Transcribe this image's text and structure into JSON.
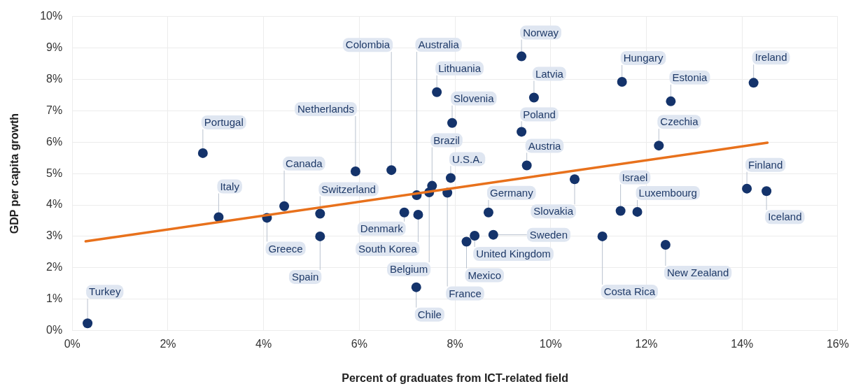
{
  "chart_data": {
    "type": "scatter",
    "xlabel": "Percent of graduates from ICT-related field",
    "ylabel": "GDP per capita growth",
    "xlim": [
      0,
      16
    ],
    "ylim": [
      0,
      10
    ],
    "xticks": [
      {
        "value": 0,
        "label": "0%"
      },
      {
        "value": 2,
        "label": "2%"
      },
      {
        "value": 4,
        "label": "4%"
      },
      {
        "value": 6,
        "label": "6%"
      },
      {
        "value": 8,
        "label": "8%"
      },
      {
        "value": 10,
        "label": "10%"
      },
      {
        "value": 12,
        "label": "12%"
      },
      {
        "value": 14,
        "label": "14%"
      },
      {
        "value": 16,
        "label": "16%"
      }
    ],
    "yticks": [
      {
        "value": 0,
        "label": "0%"
      },
      {
        "value": 1,
        "label": "1%"
      },
      {
        "value": 2,
        "label": "2%"
      },
      {
        "value": 3,
        "label": "3%"
      },
      {
        "value": 4,
        "label": "4%"
      },
      {
        "value": 5,
        "label": "5%"
      },
      {
        "value": 6,
        "label": "6%"
      },
      {
        "value": 7,
        "label": "7%"
      },
      {
        "value": 8,
        "label": "8%"
      },
      {
        "value": 9,
        "label": "9%"
      },
      {
        "value": 10,
        "label": "10%"
      }
    ],
    "grid": true,
    "legend": false,
    "marker": "circle",
    "series": [
      {
        "color": "#14336b",
        "x": [
          0.32,
          2.73,
          3.06,
          4.07,
          4.43,
          5.18,
          5.18,
          5.92,
          6.67,
          6.94,
          7.23,
          7.2,
          7.46,
          7.52,
          7.19,
          7.84,
          7.91,
          7.62,
          7.94,
          9.39,
          9.65,
          9.39,
          9.5,
          10.5,
          8.7,
          8.8,
          8.24,
          8.41,
          11.08,
          11.49,
          12.51,
          14.24,
          12.26,
          11.46,
          11.81,
          12.4,
          14.1,
          14.51
        ],
        "values": [
          0.23,
          5.65,
          3.61,
          3.59,
          3.96,
          3.72,
          3.0,
          5.07,
          5.11,
          3.76,
          3.69,
          4.31,
          4.4,
          4.61,
          1.38,
          4.39,
          4.86,
          7.59,
          6.61,
          8.73,
          7.42,
          6.33,
          5.26,
          4.82,
          3.76,
          3.05,
          2.83,
          3.02,
          3.0,
          7.92,
          7.3,
          7.89,
          5.89,
          3.81,
          3.78,
          2.73,
          4.52,
          4.44
        ]
      },
      {
        "type": "line",
        "marker": "none",
        "color": "#e8711c",
        "x": [
          0.28,
          14.53
        ],
        "values": [
          2.84,
          5.98
        ]
      }
    ],
    "annotations": [
      {
        "text": "Turkey",
        "x": 0.32,
        "y": 0.23
      },
      {
        "text": "Portugal",
        "x": 2.73,
        "y": 5.65
      },
      {
        "text": "Italy",
        "x": 3.06,
        "y": 3.61
      },
      {
        "text": "Greece",
        "x": 4.07,
        "y": 3.59
      },
      {
        "text": "Canada",
        "x": 4.43,
        "y": 3.96
      },
      {
        "text": "Switzerland",
        "x": 5.18,
        "y": 3.72
      },
      {
        "text": "Spain",
        "x": 5.18,
        "y": 3.0
      },
      {
        "text": "Netherlands",
        "x": 5.92,
        "y": 5.07
      },
      {
        "text": "Colombia",
        "x": 6.67,
        "y": 5.11
      },
      {
        "text": "Denmark",
        "x": 6.94,
        "y": 3.76
      },
      {
        "text": "South Korea",
        "x": 7.23,
        "y": 3.69
      },
      {
        "text": "Australia",
        "x": 7.2,
        "y": 4.31
      },
      {
        "text": "Belgium",
        "x": 7.46,
        "y": 4.4
      },
      {
        "text": "Brazil",
        "x": 7.52,
        "y": 4.61
      },
      {
        "text": "Chile",
        "x": 7.19,
        "y": 1.38
      },
      {
        "text": "France",
        "x": 7.84,
        "y": 4.39
      },
      {
        "text": "U.S.A.",
        "x": 7.91,
        "y": 4.86
      },
      {
        "text": "Lithuania",
        "x": 7.62,
        "y": 7.59
      },
      {
        "text": "Slovenia",
        "x": 7.94,
        "y": 6.61
      },
      {
        "text": "Norway",
        "x": 9.39,
        "y": 8.73
      },
      {
        "text": "Latvia",
        "x": 9.65,
        "y": 7.42
      },
      {
        "text": "Poland",
        "x": 9.39,
        "y": 6.33
      },
      {
        "text": "Austria",
        "x": 9.5,
        "y": 5.26
      },
      {
        "text": "Slovakia",
        "x": 10.5,
        "y": 4.82
      },
      {
        "text": "Germany",
        "x": 8.7,
        "y": 3.76
      },
      {
        "text": "Sweden",
        "x": 8.8,
        "y": 3.05
      },
      {
        "text": "Mexico",
        "x": 8.24,
        "y": 2.83
      },
      {
        "text": "United Kingdom",
        "x": 8.41,
        "y": 3.02
      },
      {
        "text": "Costa Rica",
        "x": 11.08,
        "y": 3.0
      },
      {
        "text": "Hungary",
        "x": 11.49,
        "y": 7.92
      },
      {
        "text": "Estonia",
        "x": 12.51,
        "y": 7.3
      },
      {
        "text": "Ireland",
        "x": 14.24,
        "y": 7.89
      },
      {
        "text": "Czechia",
        "x": 12.26,
        "y": 5.89
      },
      {
        "text": "Israel",
        "x": 11.46,
        "y": 3.81
      },
      {
        "text": "Luxembourg",
        "x": 11.81,
        "y": 3.78
      },
      {
        "text": "New Zealand",
        "x": 12.4,
        "y": 2.73
      },
      {
        "text": "Finland",
        "x": 14.1,
        "y": 4.52
      },
      {
        "text": "Iceland",
        "x": 14.51,
        "y": 4.44
      }
    ]
  }
}
